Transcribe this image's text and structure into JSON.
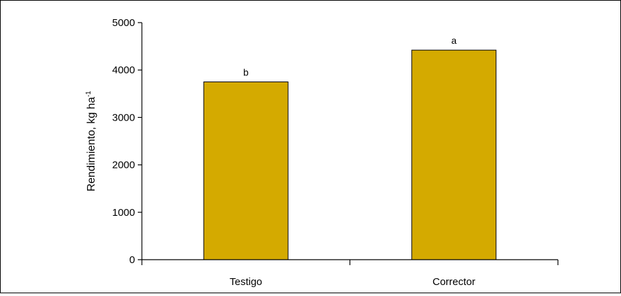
{
  "chart_data": {
    "type": "bar",
    "title": "",
    "xlabel": "",
    "ylabel": "Rendimiento, kg ha",
    "ylabel_superscript": "-1",
    "ylim": [
      0,
      5000
    ],
    "yticks": [
      "0",
      "1000",
      "2000",
      "3000",
      "4000",
      "5000"
    ],
    "grid": false,
    "legend": "none",
    "categories": [
      "Testigo",
      "Corrector"
    ],
    "values": [
      3750,
      4420
    ],
    "data_labels": [
      "b",
      "a"
    ],
    "bar_color": "#d4aa00",
    "bar_edge_color": "#000000"
  }
}
